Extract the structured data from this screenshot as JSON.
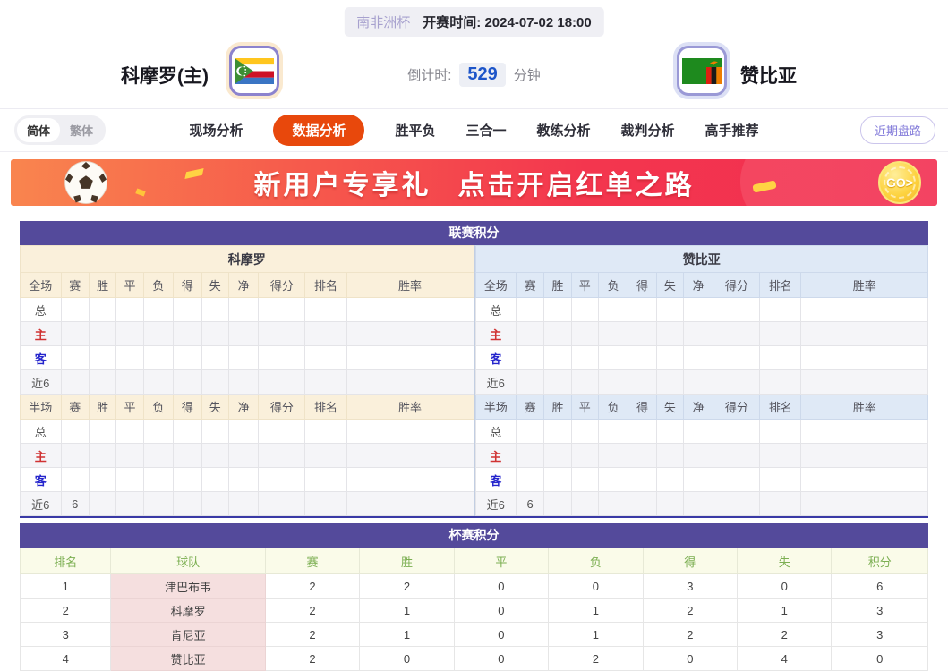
{
  "match_header": {
    "league": "南非洲杯",
    "kickoff_label": "开赛时间:",
    "kickoff_time": "2024-07-02 18:00",
    "home_team": "科摩罗(主)",
    "away_team": "赞比亚",
    "countdown_label": "倒计时:",
    "countdown_value": "529",
    "countdown_unit": "分钟"
  },
  "nav": {
    "lang_simplified": "简体",
    "lang_traditional": "繁体",
    "tabs": [
      {
        "id": "live-analysis",
        "label": "现场分析",
        "active": false
      },
      {
        "id": "data-analysis",
        "label": "数据分析",
        "active": true
      },
      {
        "id": "win-draw-lose",
        "label": "胜平负",
        "active": false
      },
      {
        "id": "three-in-one",
        "label": "三合一",
        "active": false
      },
      {
        "id": "coach-analysis",
        "label": "教练分析",
        "active": false
      },
      {
        "id": "referee-analysis",
        "label": "裁判分析",
        "active": false
      },
      {
        "id": "expert-picks",
        "label": "高手推荐",
        "active": false
      }
    ],
    "recent_button": "近期盘路"
  },
  "banner": {
    "headline_left": "新用户专享礼",
    "headline_right": "点击开启红单之路",
    "go_label": "GO>"
  },
  "icons": {
    "home_flag": "comoros-flag",
    "away_flag": "zambia-flag",
    "banner_ball": "soccer-ball-icon",
    "banner_go": "go-coin-icon"
  },
  "league_table": {
    "title": "联赛积分",
    "full_section_label": "全场",
    "half_section_label": "半场",
    "stat_columns": [
      "赛",
      "胜",
      "平",
      "负",
      "得",
      "失",
      "净",
      "得分",
      "排名",
      "胜率"
    ],
    "row_labels": [
      "总",
      "主",
      "客",
      "近6"
    ],
    "home": {
      "name": "科摩罗",
      "full_rows": [
        [
          "",
          "",
          "",
          "",
          "",
          "",
          "",
          "",
          "",
          ""
        ],
        [
          "",
          "",
          "",
          "",
          "",
          "",
          "",
          "",
          "",
          ""
        ],
        [
          "",
          "",
          "",
          "",
          "",
          "",
          "",
          "",
          "",
          ""
        ],
        [
          "",
          "",
          "",
          "",
          "",
          "",
          "",
          "",
          "",
          ""
        ]
      ],
      "half_rows": [
        [
          "",
          "",
          "",
          "",
          "",
          "",
          "",
          "",
          "",
          ""
        ],
        [
          "",
          "",
          "",
          "",
          "",
          "",
          "",
          "",
          "",
          ""
        ],
        [
          "",
          "",
          "",
          "",
          "",
          "",
          "",
          "",
          "",
          ""
        ],
        [
          "6",
          "",
          "",
          "",
          "",
          "",
          "",
          "",
          "",
          ""
        ]
      ]
    },
    "away": {
      "name": "赞比亚",
      "full_rows": [
        [
          "",
          "",
          "",
          "",
          "",
          "",
          "",
          "",
          "",
          ""
        ],
        [
          "",
          "",
          "",
          "",
          "",
          "",
          "",
          "",
          "",
          ""
        ],
        [
          "",
          "",
          "",
          "",
          "",
          "",
          "",
          "",
          "",
          ""
        ],
        [
          "",
          "",
          "",
          "",
          "",
          "",
          "",
          "",
          "",
          ""
        ]
      ],
      "half_rows": [
        [
          "",
          "",
          "",
          "",
          "",
          "",
          "",
          "",
          "",
          ""
        ],
        [
          "",
          "",
          "",
          "",
          "",
          "",
          "",
          "",
          "",
          ""
        ],
        [
          "",
          "",
          "",
          "",
          "",
          "",
          "",
          "",
          "",
          ""
        ],
        [
          "6",
          "",
          "",
          "",
          "",
          "",
          "",
          "",
          "",
          ""
        ]
      ]
    }
  },
  "cup_table": {
    "title": "杯赛积分",
    "columns": [
      "排名",
      "球队",
      "赛",
      "胜",
      "平",
      "负",
      "得",
      "失",
      "积分"
    ],
    "rows": [
      [
        "1",
        "津巴布韦",
        "2",
        "2",
        "0",
        "0",
        "3",
        "0",
        "6"
      ],
      [
        "2",
        "科摩罗",
        "2",
        "1",
        "0",
        "1",
        "2",
        "1",
        "3"
      ],
      [
        "3",
        "肯尼亚",
        "2",
        "1",
        "0",
        "1",
        "2",
        "2",
        "3"
      ],
      [
        "4",
        "赞比亚",
        "2",
        "0",
        "0",
        "2",
        "0",
        "4",
        "0"
      ]
    ]
  },
  "colors": {
    "section_header": "#544A9B",
    "nav_active": "#E8480C",
    "home_panel": "#FAF0DB",
    "away_panel": "#DFE9F6",
    "cup_header_bg": "#FAFBE9",
    "cup_header_text": "#7CAF52",
    "team_cell_pink": "#F5DFDF",
    "home_row_label": "#D03333",
    "away_row_label": "#2525CC",
    "countdown_value": "#1D55C9",
    "banner_from": "#F9854E",
    "banner_to": "#F22E51"
  }
}
